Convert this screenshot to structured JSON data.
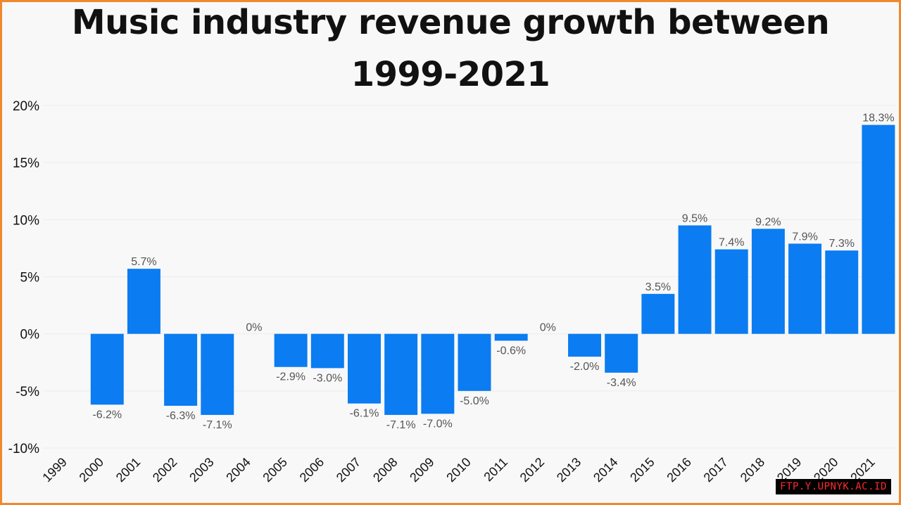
{
  "title_lines": [
    "Music industry revenue growth between",
    "1999-2021"
  ],
  "watermark": "FTP.Y.UPNYK.AC.ID",
  "colors": {
    "bar": "#0b7cf2",
    "frame": "#f0882e",
    "background": "#f8f8f8",
    "text": "#111111",
    "label": "#555555",
    "grid": "#ececec",
    "watermark_bg": "#000000",
    "watermark_text": "#ff2a2a"
  },
  "chart_data": {
    "type": "bar",
    "title": "Music industry revenue growth between 1999-2021",
    "xlabel": "",
    "ylabel": "",
    "categories": [
      "1999",
      "2000",
      "2001",
      "2002",
      "2003",
      "2004",
      "2005",
      "2006",
      "2007",
      "2008",
      "2009",
      "2010",
      "2011",
      "2012",
      "2013",
      "2014",
      "2015",
      "2016",
      "2017",
      "2018",
      "2019",
      "2020",
      "2021"
    ],
    "values": [
      null,
      -6.2,
      5.7,
      -6.3,
      -7.1,
      0,
      -2.9,
      -3.0,
      -6.1,
      -7.1,
      -7.0,
      -5.0,
      -0.6,
      0,
      -2.0,
      -3.4,
      3.5,
      9.5,
      7.4,
      9.2,
      7.9,
      7.3,
      18.3
    ],
    "data_labels": [
      "",
      "-6.2%",
      "5.7%",
      "-6.3%",
      "-7.1%",
      "0%",
      "-2.9%",
      "-3.0%",
      "-6.1%",
      "-7.1%",
      "-7.0%",
      "-5.0%",
      "-0.6%",
      "0%",
      "-2.0%",
      "-3.4%",
      "3.5%",
      "9.5%",
      "7.4%",
      "9.2%",
      "7.9%",
      "7.3%",
      "18.3%"
    ],
    "ylim": [
      -10,
      20
    ],
    "yticks": [
      20,
      15,
      10,
      5,
      0,
      -5,
      -10
    ],
    "ytick_labels": [
      "20%",
      "15%",
      "10%",
      "5%",
      "0%",
      "-5%",
      "-10%"
    ],
    "grid": true,
    "legend": "none"
  }
}
